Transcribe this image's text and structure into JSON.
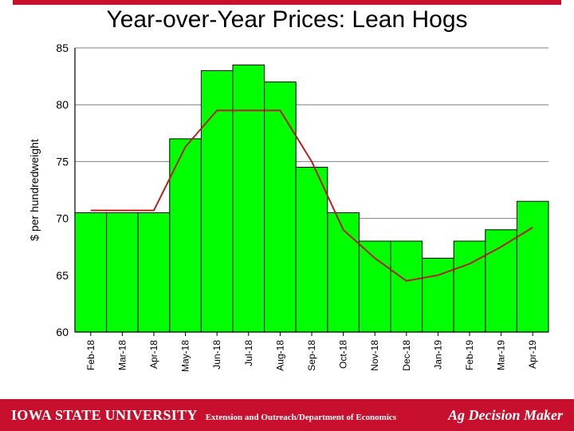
{
  "title": "Year-over-Year Prices: Lean Hogs",
  "footer": {
    "logo_main": "IOWA STATE UNIVERSITY",
    "logo_sub": "Extension and Outreach/Department of Economics",
    "right": "Ag Decision Maker"
  },
  "chart": {
    "type": "bar+line",
    "background_color": "#ffffff",
    "grid_color": "#7f7f7f",
    "axis_color": "#000000",
    "bar_color": "#00ff00",
    "bar_border": "#000000",
    "line_color": "#b22222",
    "line_width": 2,
    "bar_width": 1.0,
    "ylabel": "$ per hundredweight",
    "ylabel_fontsize": 14,
    "label_fontsize": 12,
    "ylim": [
      60,
      85
    ],
    "yticks": [
      60,
      65,
      70,
      75,
      80,
      85
    ],
    "categories": [
      "Feb-18",
      "Mar-18",
      "Apr-18",
      "May-18",
      "Jun-18",
      "Jul-18",
      "Aug-18",
      "Sep-18",
      "Oct-18",
      "Nov-18",
      "Dec-18",
      "Jan-19",
      "Feb-19",
      "Mar-19",
      "Apr-19"
    ],
    "bar_values": [
      70.5,
      70.5,
      70.5,
      77.0,
      83.0,
      83.5,
      82.0,
      74.5,
      70.5,
      68.0,
      68.0,
      66.5,
      68.0,
      69.0,
      71.5
    ],
    "line_values": [
      70.7,
      70.7,
      70.7,
      76.3,
      79.5,
      79.5,
      79.5,
      75.0,
      69.0,
      66.5,
      64.5,
      65.0,
      66.0,
      67.5,
      69.2
    ]
  }
}
